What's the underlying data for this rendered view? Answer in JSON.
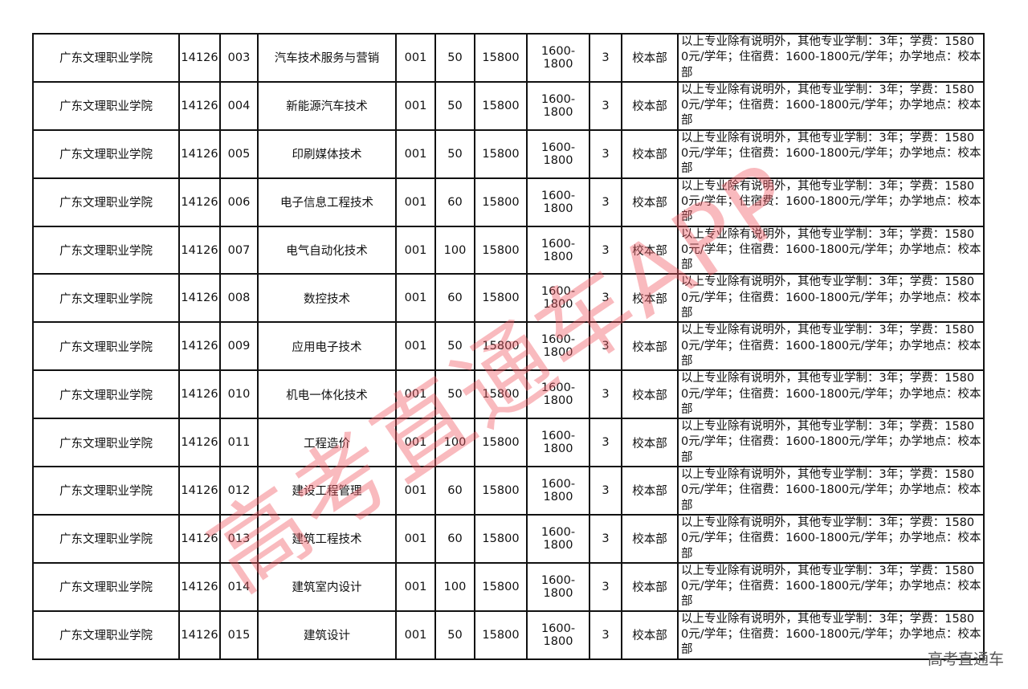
{
  "rows": [
    {
      "school": "广东文理职业学院",
      "code": "14126",
      "major_code": "003",
      "major": "汽车技术服务与营销",
      "group": "001",
      "plan": "50",
      "tuition": "15800",
      "accommodation": "1600-1800",
      "years": "3",
      "campus": "校本部",
      "note": "以上专业除有说明外，其他专业学制：3年；学费：15800元/学年；住宿费：1600-1800元/学年；办学地点：校本部"
    },
    {
      "school": "广东文理职业学院",
      "code": "14126",
      "major_code": "004",
      "major": "新能源汽车技术",
      "group": "001",
      "plan": "50",
      "tuition": "15800",
      "accommodation": "1600-1800",
      "years": "3",
      "campus": "校本部",
      "note": "以上专业除有说明外，其他专业学制：3年；学费：15800元/学年；住宿费：1600-1800元/学年；办学地点：校本部"
    },
    {
      "school": "广东文理职业学院",
      "code": "14126",
      "major_code": "005",
      "major": "印刷媒体技术",
      "group": "001",
      "plan": "50",
      "tuition": "15800",
      "accommodation": "1600-1800",
      "years": "3",
      "campus": "校本部",
      "note": "以上专业除有说明外，其他专业学制：3年；学费：15800元/学年；住宿费：1600-1800元/学年；办学地点：校本部"
    },
    {
      "school": "广东文理职业学院",
      "code": "14126",
      "major_code": "006",
      "major": "电子信息工程技术",
      "group": "001",
      "plan": "60",
      "tuition": "15800",
      "accommodation": "1600-1800",
      "years": "3",
      "campus": "校本部",
      "note": "以上专业除有说明外，其他专业学制：3年；学费：15800元/学年；住宿费：1600-1800元/学年；办学地点：校本部"
    },
    {
      "school": "广东文理职业学院",
      "code": "14126",
      "major_code": "007",
      "major": "电气自动化技术",
      "group": "001",
      "plan": "100",
      "tuition": "15800",
      "accommodation": "1600-1800",
      "years": "3",
      "campus": "校本部",
      "note": "以上专业除有说明外，其他专业学制：3年；学费：15800元/学年；住宿费：1600-1800元/学年；办学地点：校本部"
    },
    {
      "school": "广东文理职业学院",
      "code": "14126",
      "major_code": "008",
      "major": "数控技术",
      "group": "001",
      "plan": "60",
      "tuition": "15800",
      "accommodation": "1600-1800",
      "years": "3",
      "campus": "校本部",
      "note": "以上专业除有说明外，其他专业学制：3年；学费：15800元/学年；住宿费：1600-1800元/学年；办学地点：校本部"
    },
    {
      "school": "广东文理职业学院",
      "code": "14126",
      "major_code": "009",
      "major": "应用电子技术",
      "group": "001",
      "plan": "50",
      "tuition": "15800",
      "accommodation": "1600-1800",
      "years": "3",
      "campus": "校本部",
      "note": "以上专业除有说明外，其他专业学制：3年；学费：15800元/学年；住宿费：1600-1800元/学年；办学地点：校本部"
    },
    {
      "school": "广东文理职业学院",
      "code": "14126",
      "major_code": "010",
      "major": "机电一体化技术",
      "group": "001",
      "plan": "50",
      "tuition": "15800",
      "accommodation": "1600-1800",
      "years": "3",
      "campus": "校本部",
      "note": "以上专业除有说明外，其他专业学制：3年；学费：15800元/学年；住宿费：1600-1800元/学年；办学地点：校本部"
    },
    {
      "school": "广东文理职业学院",
      "code": "14126",
      "major_code": "011",
      "major": "工程造价",
      "group": "001",
      "plan": "100",
      "tuition": "15800",
      "accommodation": "1600-1800",
      "years": "3",
      "campus": "校本部",
      "note": "以上专业除有说明外，其他专业学制：3年；学费：15800元/学年；住宿费：1600-1800元/学年；办学地点：校本部"
    },
    {
      "school": "广东文理职业学院",
      "code": "14126",
      "major_code": "012",
      "major": "建设工程管理",
      "group": "001",
      "plan": "60",
      "tuition": "15800",
      "accommodation": "1600-1800",
      "years": "3",
      "campus": "校本部",
      "note": "以上专业除有说明外，其他专业学制：3年；学费：15800元/学年；住宿费：1600-1800元/学年；办学地点：校本部"
    },
    {
      "school": "广东文理职业学院",
      "code": "14126",
      "major_code": "013",
      "major": "建筑工程技术",
      "group": "001",
      "plan": "60",
      "tuition": "15800",
      "accommodation": "1600-1800",
      "years": "3",
      "campus": "校本部",
      "note": "以上专业除有说明外，其他专业学制：3年；学费：15800元/学年；住宿费：1600-1800元/学年；办学地点：校本部"
    },
    {
      "school": "广东文理职业学院",
      "code": "14126",
      "major_code": "014",
      "major": "建筑室内设计",
      "group": "001",
      "plan": "100",
      "tuition": "15800",
      "accommodation": "1600-1800",
      "years": "3",
      "campus": "校本部",
      "note": "以上专业除有说明外，其他专业学制：3年；学费：15800元/学年；住宿费：1600-1800元/学年；办学地点：校本部"
    },
    {
      "school": "广东文理职业学院",
      "code": "14126",
      "major_code": "015",
      "major": "建筑设计",
      "group": "001",
      "plan": "50",
      "tuition": "15800",
      "accommodation": "1600-1800",
      "years": "3",
      "campus": "校本部",
      "note": "以上专业除有说明外，其他专业学制：3年；学费：15800元/学年；住宿费：1600-1800元/学年；办学地点：校本部"
    }
  ],
  "watermark": "高考直通车APP",
  "footer": "高考直通车",
  "colors": {
    "watermark": "#f05a64",
    "border": "#111111"
  }
}
